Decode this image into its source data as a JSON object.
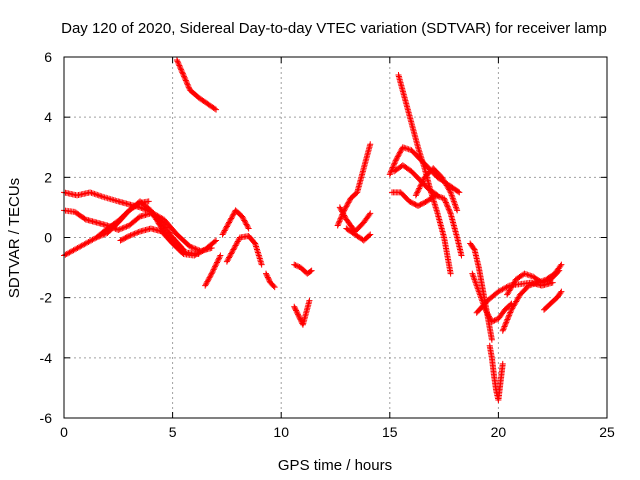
{
  "chart_data": {
    "type": "scatter",
    "title": "Day 120 of 2020, Sidereal Day-to-day VTEC variation (SDTVAR) for receiver lamp",
    "xlabel": "GPS time / hours",
    "ylabel": "SDTVAR / TECUs",
    "xlim": [
      0,
      25
    ],
    "ylim": [
      -6,
      6
    ],
    "xticks": [
      0,
      5,
      10,
      15,
      20,
      25
    ],
    "yticks": [
      -6,
      -4,
      -2,
      0,
      2,
      4,
      6
    ],
    "xtick_labels": [
      "0",
      "5",
      "10",
      "15",
      "20",
      "25"
    ],
    "ytick_labels": [
      "-6",
      "-4",
      "-2",
      "0",
      "2",
      "4",
      "6"
    ],
    "grid": true,
    "legend": "none",
    "marker": "+",
    "color": "#ff0000",
    "tracks": [
      {
        "x": [
          0.0,
          0.6,
          1.2,
          1.8,
          2.5,
          3.0,
          3.5,
          4.0,
          4.6,
          5.2,
          5.8,
          6.3,
          6.8
        ],
        "y": [
          1.5,
          1.4,
          1.5,
          1.35,
          1.2,
          1.1,
          1.0,
          0.85,
          0.6,
          0.1,
          -0.3,
          -0.45,
          -0.35
        ]
      },
      {
        "x": [
          0.0,
          0.5,
          1.0,
          1.5,
          2.0,
          2.5,
          3.0,
          3.5,
          4.0,
          4.5,
          5.0,
          5.5
        ],
        "y": [
          0.9,
          0.85,
          0.6,
          0.5,
          0.4,
          0.25,
          0.4,
          0.7,
          0.8,
          0.5,
          0.0,
          -0.4
        ]
      },
      {
        "x": [
          0.0,
          0.5,
          1.0,
          1.5,
          2.0,
          2.5,
          3.0,
          3.5,
          3.9
        ],
        "y": [
          -0.6,
          -0.4,
          -0.2,
          0.0,
          0.3,
          0.55,
          0.9,
          1.15,
          1.2
        ]
      },
      {
        "x": [
          1.5,
          2.0,
          2.5,
          3.0,
          3.5,
          4.0,
          4.5,
          5.0,
          5.6,
          6.2
        ],
        "y": [
          0.0,
          0.15,
          0.5,
          0.9,
          1.2,
          0.9,
          0.3,
          -0.2,
          -0.5,
          -0.55
        ]
      },
      {
        "x": [
          2.6,
          3.0,
          3.5,
          4.0,
          4.5,
          5.0,
          5.5,
          6.0,
          6.5,
          7.0
        ],
        "y": [
          -0.1,
          0.05,
          0.2,
          0.3,
          0.2,
          -0.2,
          -0.55,
          -0.6,
          -0.4,
          -0.1
        ]
      },
      {
        "x": [
          5.2,
          5.5,
          5.8,
          6.2,
          6.6,
          7.0
        ],
        "y": [
          5.9,
          5.4,
          4.9,
          4.65,
          4.45,
          4.25
        ]
      },
      {
        "x": [
          6.5,
          6.8,
          7.2
        ],
        "y": [
          -1.6,
          -1.2,
          -0.6
        ]
      },
      {
        "x": [
          7.3,
          7.6,
          7.9,
          8.2,
          8.5
        ],
        "y": [
          0.1,
          0.5,
          0.9,
          0.7,
          0.3
        ]
      },
      {
        "x": [
          7.5,
          7.8,
          8.1,
          8.5,
          8.8,
          9.1
        ],
        "y": [
          -0.8,
          -0.4,
          0.0,
          0.05,
          -0.2,
          -0.9
        ]
      },
      {
        "x": [
          9.3,
          9.5,
          9.7
        ],
        "y": [
          -1.2,
          -1.5,
          -1.65
        ]
      },
      {
        "x": [
          10.6,
          10.9,
          11.2,
          11.4
        ],
        "y": [
          -0.9,
          -1.0,
          -1.2,
          -1.1
        ]
      },
      {
        "x": [
          10.6,
          10.8,
          11.0,
          11.3
        ],
        "y": [
          -2.3,
          -2.6,
          -2.9,
          -2.1
        ]
      },
      {
        "x": [
          12.6,
          12.9,
          13.2,
          13.5,
          13.8,
          14.1
        ],
        "y": [
          0.4,
          0.9,
          1.3,
          1.5,
          2.3,
          3.1
        ]
      },
      {
        "x": [
          12.7,
          13.0,
          13.4,
          13.8,
          14.1
        ],
        "y": [
          1.0,
          0.6,
          0.2,
          0.5,
          0.8
        ]
      },
      {
        "x": [
          13.0,
          13.4,
          13.8,
          14.1
        ],
        "y": [
          0.3,
          0.1,
          -0.1,
          0.1
        ]
      },
      {
        "x": [
          15.0,
          15.3,
          15.6,
          16.0,
          16.4,
          16.8,
          17.2,
          17.6,
          18.0,
          18.2
        ],
        "y": [
          2.1,
          2.6,
          3.0,
          2.9,
          2.6,
          2.3,
          2.0,
          1.8,
          1.6,
          1.5
        ]
      },
      {
        "x": [
          15.1,
          15.5,
          15.9,
          16.3,
          16.7,
          17.1,
          17.5,
          17.8,
          18.1,
          18.3
        ],
        "y": [
          1.5,
          1.5,
          1.2,
          1.05,
          1.2,
          1.4,
          1.3,
          0.8,
          0.0,
          -0.6
        ]
      },
      {
        "x": [
          15.4,
          15.7,
          16.0,
          16.3,
          16.6,
          16.9,
          17.2,
          17.5,
          17.8
        ],
        "y": [
          5.4,
          4.6,
          3.8,
          3.0,
          2.3,
          1.5,
          0.8,
          0.0,
          -1.2
        ]
      },
      {
        "x": [
          15.2,
          15.6,
          16.0,
          16.4,
          16.8,
          17.2
        ],
        "y": [
          2.2,
          2.4,
          2.2,
          1.9,
          1.6,
          1.4
        ]
      },
      {
        "x": [
          16.2,
          16.6,
          17.0,
          17.4,
          17.8,
          18.1
        ],
        "y": [
          1.4,
          2.0,
          2.3,
          2.0,
          1.5,
          0.9
        ]
      },
      {
        "x": [
          18.7,
          18.9,
          19.1,
          19.3,
          19.5,
          19.7
        ],
        "y": [
          -0.2,
          -0.4,
          -1.0,
          -1.8,
          -2.6,
          -3.4
        ]
      },
      {
        "x": [
          19.6,
          19.7,
          19.8,
          19.9,
          20.0,
          20.1,
          20.2
        ],
        "y": [
          -3.6,
          -4.0,
          -4.6,
          -5.1,
          -5.4,
          -4.8,
          -4.2
        ]
      },
      {
        "x": [
          18.8,
          19.1,
          19.4,
          19.7,
          20.0,
          20.3,
          20.6
        ],
        "y": [
          -1.2,
          -1.8,
          -2.4,
          -2.8,
          -2.7,
          -2.4,
          -2.2
        ]
      },
      {
        "x": [
          20.2,
          20.6,
          21.0,
          21.4,
          21.8,
          22.2,
          22.6,
          22.9
        ],
        "y": [
          -3.1,
          -2.4,
          -1.9,
          -1.6,
          -1.5,
          -1.4,
          -1.2,
          -0.9
        ]
      },
      {
        "x": [
          19.0,
          19.5,
          20.0,
          20.5,
          21.0,
          21.5,
          22.0,
          22.5
        ],
        "y": [
          -2.5,
          -2.1,
          -1.8,
          -1.6,
          -1.55,
          -1.5,
          -1.6,
          -1.5
        ]
      },
      {
        "x": [
          20.4,
          20.8,
          21.2,
          21.6,
          22.0,
          22.4,
          22.8
        ],
        "y": [
          -1.9,
          -1.4,
          -1.2,
          -1.3,
          -1.5,
          -1.4,
          -1.1
        ]
      },
      {
        "x": [
          22.1,
          22.4,
          22.7,
          22.9
        ],
        "y": [
          -2.4,
          -2.2,
          -2.0,
          -1.8
        ]
      }
    ]
  }
}
